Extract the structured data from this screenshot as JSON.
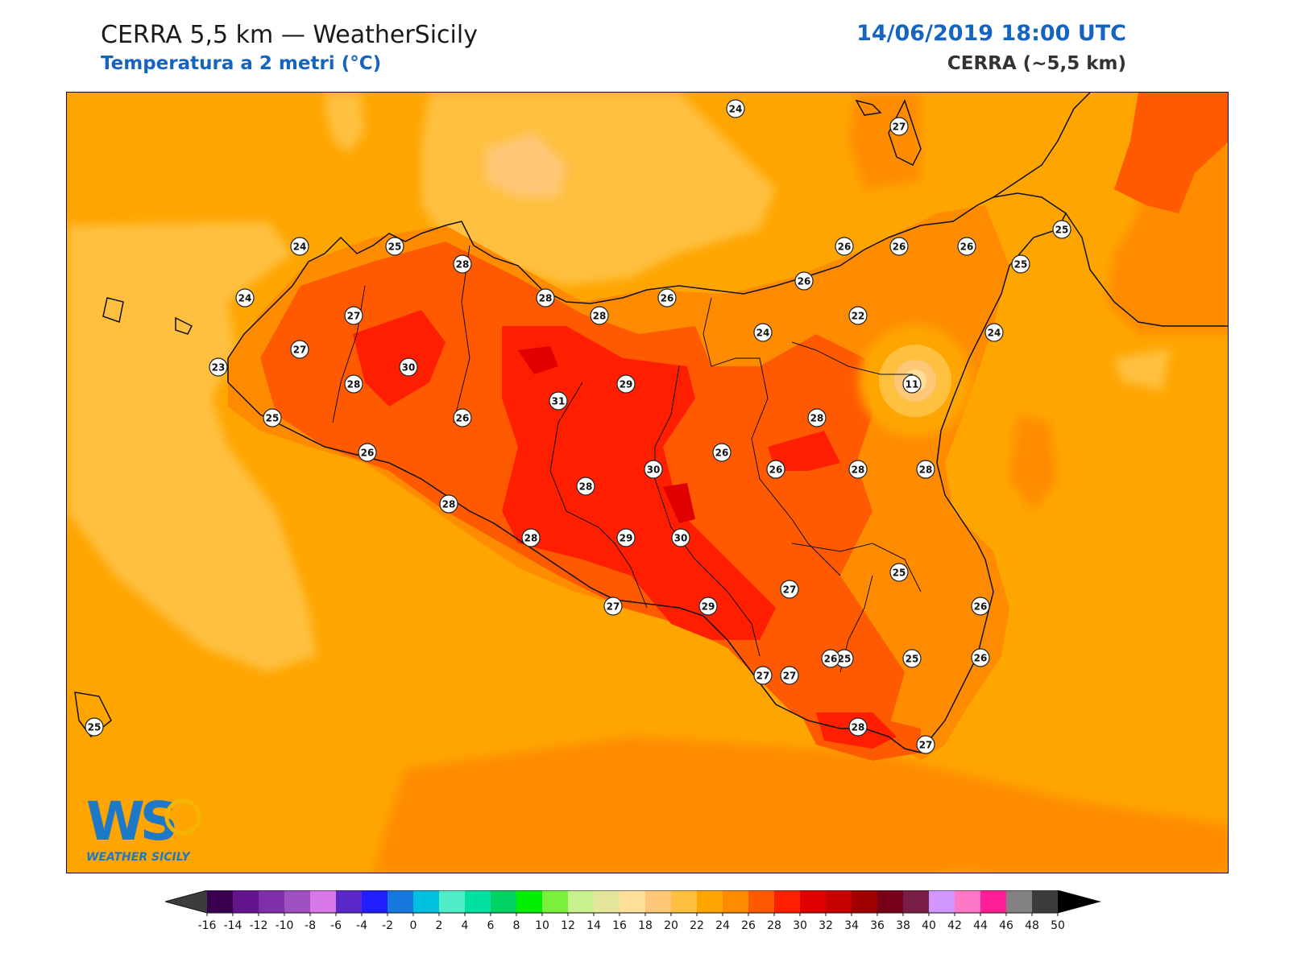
{
  "header": {
    "title": "CERRA 5,5 km — WeatherSicily",
    "subtitle": "Temperatura a 2 metri (°C)",
    "datetime": "14/06/2019 18:00 UTC",
    "model": "CERRA (~5,5 km)"
  },
  "map": {
    "variable": "2 m temperature",
    "stations": [
      {
        "v": "24"
      },
      {
        "v": "27"
      },
      {
        "v": "24"
      },
      {
        "v": "25"
      },
      {
        "v": "28"
      },
      {
        "v": "24"
      },
      {
        "v": "27"
      },
      {
        "v": "27"
      },
      {
        "v": "23"
      },
      {
        "v": "30"
      },
      {
        "v": "28"
      },
      {
        "v": "25"
      },
      {
        "v": "26"
      },
      {
        "v": "26"
      },
      {
        "v": "28"
      },
      {
        "v": "28"
      },
      {
        "v": "28"
      },
      {
        "v": "31"
      },
      {
        "v": "29"
      },
      {
        "v": "28"
      },
      {
        "v": "26"
      },
      {
        "v": "28"
      },
      {
        "v": "30"
      },
      {
        "v": "28"
      },
      {
        "v": "29"
      },
      {
        "v": "30"
      },
      {
        "v": "27"
      },
      {
        "v": "26"
      },
      {
        "v": "26"
      },
      {
        "v": "26"
      },
      {
        "v": "26"
      },
      {
        "v": "26"
      },
      {
        "v": "26"
      },
      {
        "v": "25"
      },
      {
        "v": "25"
      },
      {
        "v": "24"
      },
      {
        "v": "24"
      },
      {
        "v": "22"
      },
      {
        "v": "11"
      },
      {
        "v": "27"
      },
      {
        "v": "28"
      },
      {
        "v": "26"
      },
      {
        "v": "28"
      },
      {
        "v": "28"
      },
      {
        "v": "27"
      },
      {
        "v": "27"
      },
      {
        "v": "27"
      },
      {
        "v": "25"
      },
      {
        "v": "25"
      },
      {
        "v": "29"
      },
      {
        "v": "26"
      },
      {
        "v": "25"
      },
      {
        "v": "26"
      },
      {
        "v": "28"
      },
      {
        "v": "27"
      },
      {
        "v": "25"
      }
    ]
  },
  "logo": {
    "text": "WEATHER SICILY",
    "monogram": "WS"
  },
  "colorbar": {
    "colors": [
      "#3a0050",
      "#64148c",
      "#7e30a8",
      "#a050c0",
      "#d878e8",
      "#5a28c8",
      "#1e1eff",
      "#1478dc",
      "#00c0e0",
      "#50ecc8",
      "#00e0a0",
      "#00d264",
      "#00f000",
      "#78f03c",
      "#c8f08c",
      "#e6e69a",
      "#ffe09a",
      "#ffc878",
      "#ffc040",
      "#ffa500",
      "#ff8c00",
      "#ff5a00",
      "#ff1e00",
      "#e10000",
      "#c80000",
      "#a00000",
      "#780018",
      "#781e46",
      "#d296ff",
      "#ff78c8",
      "#ff1e96",
      "#828282",
      "#3c3c3c"
    ],
    "under_color": "#3c3c3c",
    "over_color": "#000000",
    "tick_labels": [
      "-16",
      "-14",
      "-12",
      "-10",
      "-8",
      "-6",
      "-4",
      "-2",
      "0",
      "2",
      "4",
      "6",
      "8",
      "10",
      "12",
      "14",
      "16",
      "18",
      "20",
      "22",
      "24",
      "26",
      "28",
      "30",
      "32",
      "34",
      "36",
      "38",
      "40",
      "42",
      "44",
      "46",
      "48",
      "50"
    ]
  }
}
